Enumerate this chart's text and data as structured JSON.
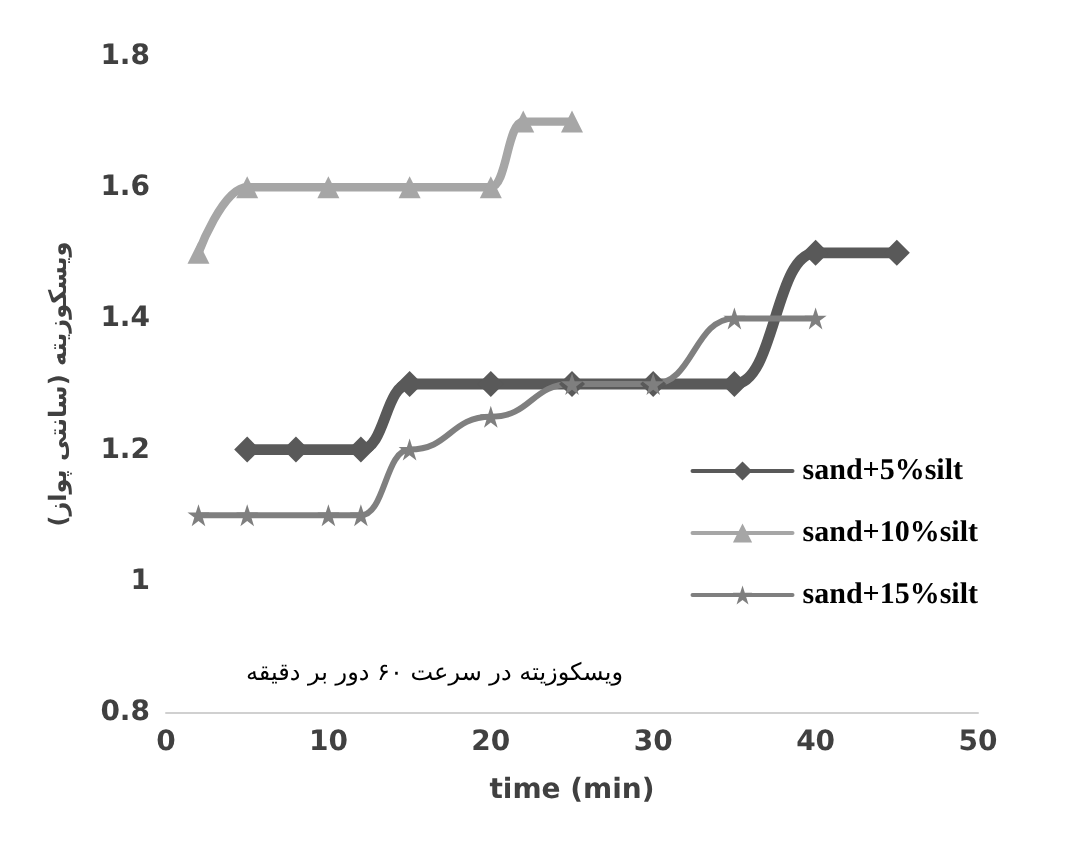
{
  "chart_data": {
    "type": "line",
    "xlabel": "time (min)",
    "ylabel": "ویسکوزیته (سانتی پواز)",
    "xlim": [
      0,
      50
    ],
    "xticks": [
      0,
      10,
      20,
      30,
      40,
      50
    ],
    "ylim": [
      0.8,
      1.8
    ],
    "yticks": [
      0.8,
      1,
      1.2,
      1.4,
      1.6,
      1.8
    ],
    "grid": false,
    "legend": "right",
    "annotations": [
      "ویسکوزیته در سرعت ۶۰ دور بر دقیقه"
    ],
    "series": [
      {
        "name": "sand+5%silt",
        "color": "#595959",
        "marker": "diamond",
        "x": [
          5,
          8,
          12,
          15,
          20,
          25,
          30,
          35,
          40,
          45
        ],
        "values": [
          1.2,
          1.2,
          1.2,
          1.3,
          1.3,
          1.3,
          1.3,
          1.3,
          1.5,
          1.5
        ]
      },
      {
        "name": "sand+10%silt",
        "color": "#a6a6a6",
        "marker": "triangle",
        "x": [
          2,
          5,
          10,
          15,
          20,
          22,
          25
        ],
        "values": [
          1.5,
          1.6,
          1.6,
          1.6,
          1.6,
          1.7,
          1.7
        ]
      },
      {
        "name": "sand+15%silt",
        "color": "#7f7f7f",
        "marker": "star",
        "x": [
          2,
          5,
          10,
          12,
          15,
          20,
          25,
          30,
          35,
          40
        ],
        "values": [
          1.1,
          1.1,
          1.1,
          1.1,
          1.2,
          1.25,
          1.3,
          1.3,
          1.4,
          1.4
        ]
      }
    ]
  }
}
